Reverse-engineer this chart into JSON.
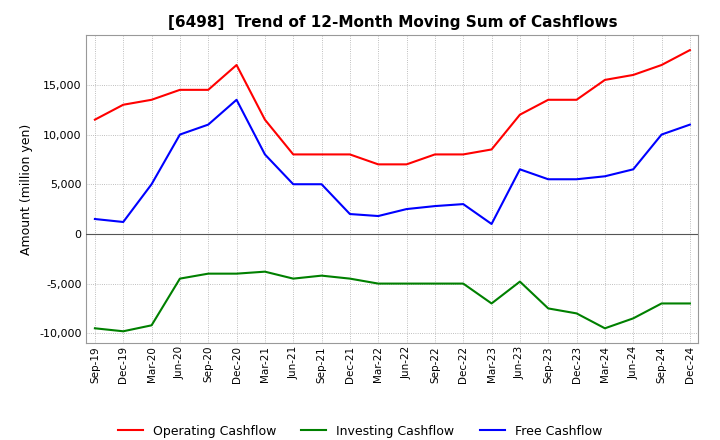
{
  "title": "[6498]  Trend of 12-Month Moving Sum of Cashflows",
  "ylabel": "Amount (million yen)",
  "x_labels": [
    "Sep-19",
    "Dec-19",
    "Mar-20",
    "Jun-20",
    "Sep-20",
    "Dec-20",
    "Mar-21",
    "Jun-21",
    "Sep-21",
    "Dec-21",
    "Mar-22",
    "Jun-22",
    "Sep-22",
    "Dec-22",
    "Mar-23",
    "Jun-23",
    "Sep-23",
    "Dec-23",
    "Mar-24",
    "Jun-24",
    "Sep-24",
    "Dec-24"
  ],
  "operating_cashflow": [
    11500,
    13000,
    13500,
    14500,
    14500,
    17000,
    11500,
    8000,
    8000,
    8000,
    7000,
    7000,
    8000,
    8000,
    8500,
    12000,
    13500,
    13500,
    15500,
    16000,
    17000,
    18500
  ],
  "investing_cashflow": [
    -9500,
    -9800,
    -9200,
    -4500,
    -4000,
    -4000,
    -3800,
    -4500,
    -4200,
    -4500,
    -5000,
    -5000,
    -5000,
    -5000,
    -7000,
    -4800,
    -7500,
    -8000,
    -9500,
    -8500,
    -7000,
    -7000
  ],
  "free_cashflow": [
    1500,
    1200,
    5000,
    10000,
    11000,
    13500,
    8000,
    5000,
    5000,
    2000,
    1800,
    2500,
    2800,
    3000,
    1000,
    6500,
    5500,
    5500,
    5800,
    6500,
    10000,
    11000
  ],
  "operating_color": "#ff0000",
  "investing_color": "#008000",
  "free_color": "#0000ff",
  "ylim": [
    -11000,
    20000
  ],
  "yticks": [
    -10000,
    -5000,
    0,
    5000,
    10000,
    15000
  ],
  "background_color": "#ffffff",
  "grid_color": "#aaaaaa"
}
